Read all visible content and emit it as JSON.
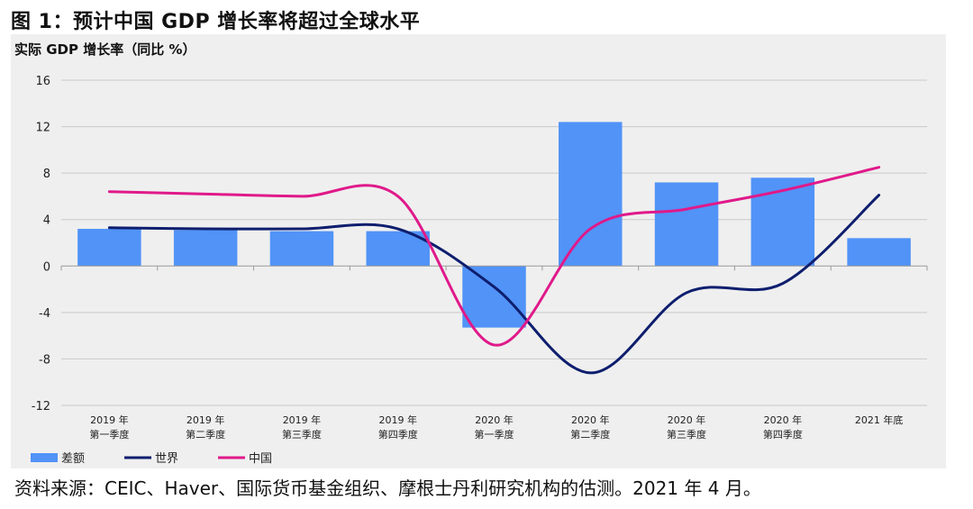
{
  "figure": {
    "title": "图 1：预计中国 GDP 增长率将超过全球水平",
    "source": "资料来源：CEIC、Haver、国际货币基金组织、摩根士丹利研究机构的估测。2021 年 4 月。"
  },
  "colors": {
    "bar": "#5193f7",
    "world": "#0e1e6e",
    "china": "#e0198a",
    "grid": "#c9c9c9",
    "panel_bg": "#efefef"
  },
  "chart_data": {
    "type": "bar",
    "subtitle": "实际 GDP 增长率（同比 %）",
    "categories": [
      [
        "2019 年",
        "第一季度"
      ],
      [
        "2019 年",
        "第二季度"
      ],
      [
        "2019 年",
        "第三季度"
      ],
      [
        "2019 年",
        "第四季度"
      ],
      [
        "2020 年",
        "第一季度"
      ],
      [
        "2020 年",
        "第二季度"
      ],
      [
        "2020 年",
        "第三季度"
      ],
      [
        "2020 年",
        "第四季度"
      ],
      [
        "2021 年底"
      ]
    ],
    "yticks": [
      "16",
      "12",
      "8",
      "4",
      "0",
      "-4",
      "-8",
      "-12"
    ],
    "ylim": [
      -12,
      16
    ],
    "grid": true,
    "legend_position": "bottom-left",
    "series": [
      {
        "name": "差额",
        "type": "bar",
        "values": [
          3.2,
          3.1,
          3.0,
          3.0,
          -5.3,
          12.4,
          7.2,
          7.6,
          2.4
        ]
      },
      {
        "name": "世界",
        "type": "line",
        "values": [
          3.3,
          3.2,
          3.2,
          3.2,
          -1.8,
          -9.2,
          -2.3,
          -1.5,
          6.1
        ]
      },
      {
        "name": "中国",
        "type": "line",
        "values": [
          6.4,
          6.2,
          6.0,
          6.0,
          -6.8,
          3.2,
          4.9,
          6.5,
          8.5
        ]
      }
    ]
  }
}
